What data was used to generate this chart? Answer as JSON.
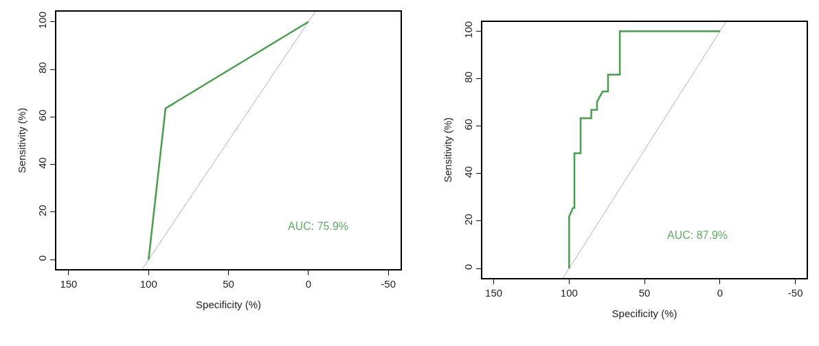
{
  "chart_data": [
    {
      "type": "line",
      "xlabel": "Specificity (%)",
      "ylabel": "Sensitivity (%)",
      "xlim": [
        157.6,
        -57.6
      ],
      "ylim": [
        -4,
        104.2
      ],
      "xticks": [
        150,
        100,
        50,
        0,
        -50
      ],
      "yticks": [
        0,
        20,
        40,
        60,
        80,
        100
      ],
      "marker": "none",
      "line_style": "solid",
      "series": [
        {
          "color": "#9e9e9e",
          "x": [
            104,
            -4.2
          ],
          "values": [
            -4,
            104.2
          ]
        },
        {
          "color": "#43a047",
          "x": [
            100,
            89.4,
            0
          ],
          "values": [
            0,
            63.6,
            100
          ]
        }
      ],
      "annotations": [
        "AUC: 75.9%"
      ]
    },
    {
      "type": "line",
      "xlabel": "Specificity (%)",
      "ylabel": "Sensitivity (%)",
      "xlim": [
        157.5,
        -57.5
      ],
      "ylim": [
        -4.1,
        104
      ],
      "xticks": [
        150,
        100,
        50,
        0,
        -50
      ],
      "yticks": [
        0,
        20,
        40,
        60,
        80,
        100
      ],
      "marker": "none",
      "line_style": "solid",
      "series": [
        {
          "color": "#9e9e9e",
          "x": [
            104.1,
            -4
          ],
          "values": [
            -4.1,
            104
          ]
        },
        {
          "color": "#43a047",
          "x": [
            100,
            100,
            97.5,
            96.5,
            96.5,
            92.4,
            92.4,
            85.3,
            85.3,
            81.5,
            81.5,
            77.8,
            74.2,
            74.2,
            66.4,
            66.4,
            0
          ],
          "values": [
            0,
            21.9,
            25.5,
            25.5,
            48.6,
            48.6,
            63.3,
            63.3,
            66.9,
            66.9,
            70.3,
            74.6,
            74.6,
            81.7,
            81.7,
            100,
            100
          ]
        }
      ],
      "annotations": [
        "AUC: 87.9%"
      ]
    }
  ]
}
